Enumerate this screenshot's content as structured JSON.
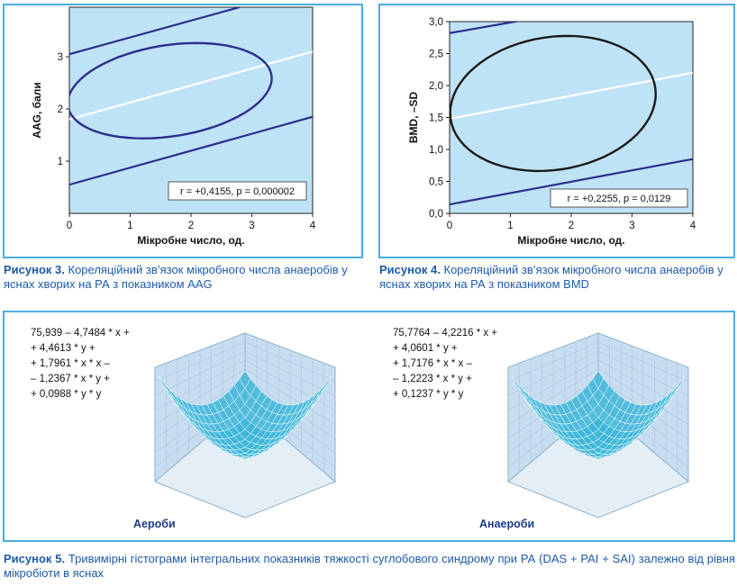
{
  "chart_data": [
    {
      "type": "scatter",
      "xlabel": "Мікробне число, од.",
      "ylabel": "AAG, бали",
      "xlim": [
        0,
        4
      ],
      "ylim": [
        0,
        3.95
      ],
      "xticks": [
        "0",
        "1",
        "2",
        "3",
        "4"
      ],
      "yticks": [
        "1",
        "2",
        "3"
      ],
      "ytick_values": [
        1,
        2,
        3
      ],
      "annotation": "r = +0,4155,  p = 0,000002",
      "regression_line": {
        "x": [
          0,
          4
        ],
        "y": [
          1.8,
          3.1
        ]
      },
      "confidence_band_upper": {
        "x": [
          0,
          2.8
        ],
        "y": [
          3.05,
          3.95
        ]
      },
      "confidence_band_lower": {
        "x": [
          0,
          4
        ],
        "y": [
          0.55,
          1.85
        ]
      },
      "ellipse": {
        "cx": 1.65,
        "cy": 2.35,
        "rx": 1.7,
        "ry": 0.87,
        "angle_deg": 11
      },
      "grid": false
    },
    {
      "type": "scatter",
      "xlabel": "Мікробне число, од.",
      "ylabel": "BMD, –SD",
      "xlim": [
        0,
        4
      ],
      "ylim": [
        0,
        3
      ],
      "xticks": [
        "0",
        "1",
        "2",
        "3",
        "4"
      ],
      "yticks": [
        "0,0",
        "0,5",
        "1,0",
        "1,5",
        "2,0",
        "2,5",
        "3,0"
      ],
      "ytick_values": [
        0,
        0.5,
        1,
        1.5,
        2,
        2.5,
        3
      ],
      "annotation": "r = +0,2255,  p = 0,0129",
      "regression_line": {
        "x": [
          0,
          4
        ],
        "y": [
          1.48,
          2.2
        ]
      },
      "confidence_band_upper": {
        "x": [
          0,
          1.2
        ],
        "y": [
          2.82,
          3.02
        ]
      },
      "confidence_band_lower": {
        "x": [
          0,
          4
        ],
        "y": [
          0.14,
          0.85
        ]
      },
      "ellipse": {
        "cx": 1.7,
        "cy": 1.72,
        "rx": 1.7,
        "ry": 1.04,
        "angle_deg": 8
      },
      "grid": false
    },
    {
      "type": "heatmap",
      "label": "Аероби",
      "formula": [
        "75,939 – 4,7484 * x +",
        "+ 4,4613 * y +",
        "+ 1,7961 * x * x –",
        "– 1,2367 * x * y +",
        "+ 0,0988 * y * y"
      ]
    },
    {
      "type": "heatmap",
      "label": "Анаероби",
      "formula": [
        "75,7764 – 4,2216 * x +",
        "+ 4,0601 * y +",
        "+ 1,7176 * x * x –",
        "– 1,2223 * x * y +",
        "+ 0,1237 * y * y"
      ]
    }
  ],
  "captions": {
    "fig3_label": "Рисунок 3.",
    "fig3_text": " Кореляційний зв’язок мікробного числа анаеробів у яснах хворих на РА з показником AAG",
    "fig4_label": "Рисунок 4.",
    "fig4_text": " Кореляційний зв’язок мікробного числа анаеробів у яснах хворих на РА з показником BMD",
    "fig5_label": "Рисунок 5.",
    "fig5_text": " Тривимірні гістограми інтегральних показників тяжкості суглобового синдрому при РА (DAS + PAI + SAI) залежно від рівня мікробіоти в яснах"
  },
  "colors": {
    "plot_bg": "#bfe3f6",
    "band_line": "#2b2f8f",
    "ellipse_left": "#2b2f8f",
    "ellipse_right": "#1a1a1a",
    "regression": "#ffffff",
    "frame": "#4aaede",
    "caption": "#1e5aa8",
    "surface": "#3fb7d9",
    "cube_wall": "#c8def0"
  }
}
